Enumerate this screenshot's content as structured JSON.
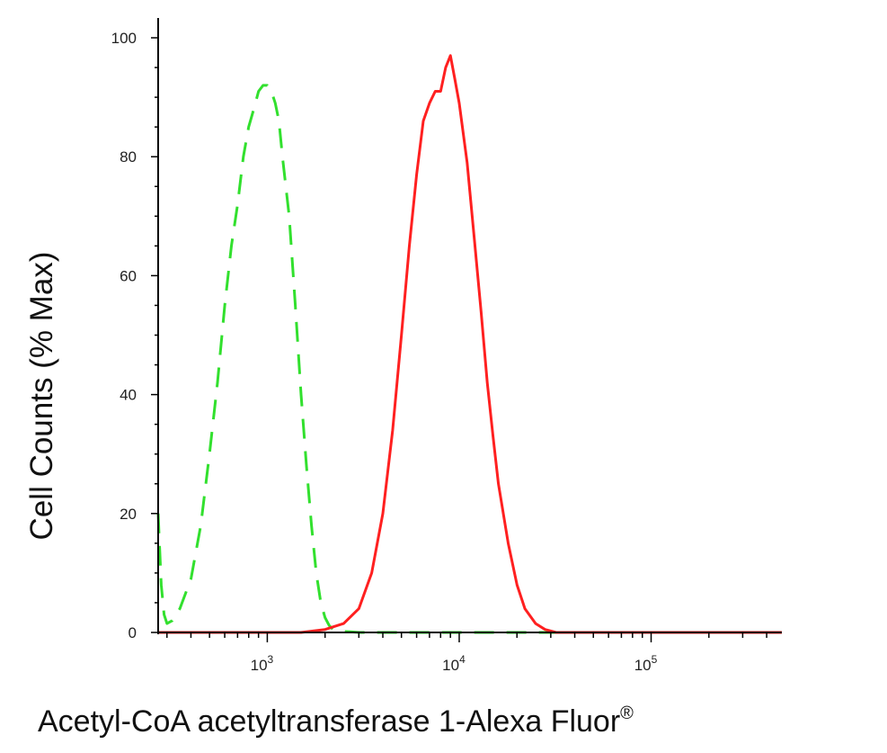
{
  "chart_data": {
    "type": "line",
    "title": "",
    "xlabel": "Acetyl-CoA acetyltransferase 1-Alexa Fluor",
    "xlabel_superscript": "®",
    "ylabel": "Cell Counts (% Max)",
    "x_scale": "log",
    "xlim": [
      270,
      480000
    ],
    "ylim": [
      0,
      105
    ],
    "y_ticks": [
      {
        "value": 0,
        "label": "0"
      },
      {
        "value": 20,
        "label": "20"
      },
      {
        "value": 40,
        "label": "40"
      },
      {
        "value": 60,
        "label": "60"
      },
      {
        "value": 80,
        "label": "80"
      },
      {
        "value": 100,
        "label": "100"
      }
    ],
    "x_major_ticks": [
      {
        "value": 1000,
        "base": "10",
        "exp": "3"
      },
      {
        "value": 10000,
        "base": "10",
        "exp": "4"
      },
      {
        "value": 100000,
        "base": "10",
        "exp": "5"
      }
    ],
    "grid": false,
    "series": [
      {
        "color": "#32e02e",
        "style": "dashed",
        "x": [
          270,
          280,
          290,
          300,
          320,
          350,
          400,
          450,
          500,
          550,
          600,
          650,
          700,
          750,
          800,
          850,
          900,
          950,
          1000,
          1050,
          1100,
          1150,
          1200,
          1300,
          1400,
          1500,
          1600,
          1700,
          1800,
          1900,
          2000,
          2100,
          2200,
          2400,
          2700,
          3000,
          4000,
          6000,
          10000,
          50000,
          480000
        ],
        "y": [
          20,
          8,
          3,
          1.5,
          2,
          4,
          9,
          18,
          30,
          42,
          55,
          65,
          72,
          80,
          85,
          88,
          91,
          92,
          92,
          91,
          89,
          86,
          80,
          70,
          55,
          40,
          28,
          18,
          10,
          5,
          2.5,
          1.2,
          0.5,
          0.2,
          0.1,
          0,
          0,
          0,
          0,
          0,
          0
        ]
      },
      {
        "color": "#ff2020",
        "style": "solid",
        "x": [
          270,
          600,
          1000,
          1500,
          2000,
          2500,
          3000,
          3500,
          4000,
          4500,
          5000,
          5500,
          6000,
          6500,
          7000,
          7500,
          8000,
          8500,
          9000,
          9500,
          10000,
          11000,
          12000,
          13000,
          14000,
          15000,
          16000,
          18000,
          20000,
          22000,
          25000,
          28000,
          32000,
          40000,
          60000,
          100000,
          480000
        ],
        "y": [
          0,
          0,
          0,
          0,
          0.5,
          1.5,
          4,
          10,
          20,
          34,
          50,
          65,
          77,
          86,
          89,
          91,
          91,
          95,
          97,
          93,
          89,
          79,
          66,
          54,
          42,
          33,
          25,
          15,
          8,
          4,
          1.5,
          0.5,
          0,
          0,
          0,
          0,
          0
        ]
      }
    ]
  }
}
